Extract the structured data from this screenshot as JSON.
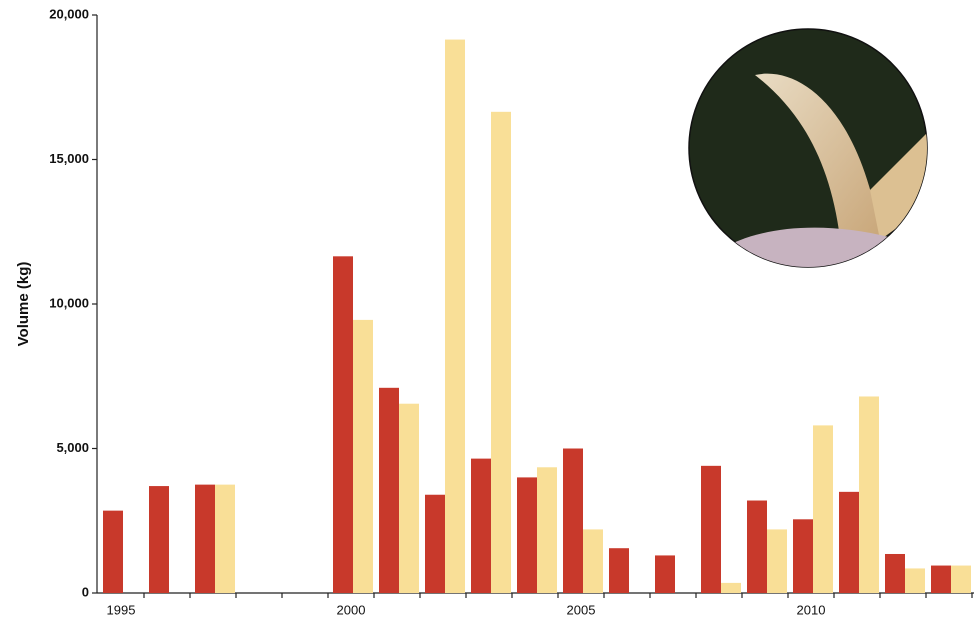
{
  "chart_data": {
    "type": "bar",
    "y_label": "Volume (kg)",
    "categories": [
      "1995",
      null,
      null,
      null,
      null,
      "2000",
      null,
      null,
      null,
      null,
      "2005",
      null,
      null,
      null,
      null,
      "2010",
      null,
      null,
      null
    ],
    "series": [
      {
        "color": "#c8392b",
        "values": [
          2850,
          3700,
          3750,
          0,
          0,
          11650,
          7100,
          3400,
          4650,
          4000,
          5000,
          1550,
          1300,
          4400,
          3200,
          2550,
          3500,
          1350,
          950
        ]
      },
      {
        "color": "#f9df97",
        "values": [
          0,
          0,
          3750,
          0,
          0,
          9450,
          6550,
          19150,
          16650,
          4350,
          2200,
          0,
          0,
          350,
          2200,
          5800,
          6800,
          850,
          950
        ]
      }
    ],
    "ylim": [
      0,
      20000
    ],
    "yticks": [
      0,
      {
        "value": 5000,
        "label": "5,000"
      },
      {
        "value": 10000,
        "label": "10,000"
      },
      {
        "value": 15000,
        "label": "15,000"
      },
      {
        "value": 20000,
        "label": "20,000"
      }
    ],
    "grid": false
  }
}
